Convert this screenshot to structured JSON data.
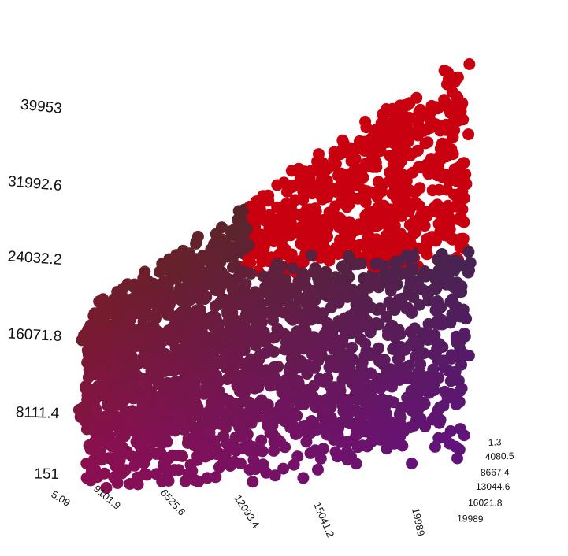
{
  "chart_data": {
    "type": "scatter",
    "dimensions": 3,
    "title": "",
    "xlabel": "",
    "ylabel": "",
    "zlabel": "",
    "grid": false,
    "legend": "none",
    "x_axis": {
      "ticks": [
        "5.09",
        "9101.9",
        "6525.6",
        "12093.4",
        "15041.2",
        "19989"
      ],
      "range": [
        5.09,
        19989
      ]
    },
    "y_axis": {
      "ticks": [
        "1.3",
        "4080.5",
        "8667.4",
        "13044.6",
        "16021.8",
        "19989"
      ],
      "range": [
        1.3,
        19989
      ]
    },
    "z_axis": {
      "ticks": [
        "151",
        "8111.4",
        "16071.8",
        "24032.2",
        "31992.6",
        "39953"
      ],
      "range": [
        151,
        39953
      ]
    },
    "color_rule": "points with z above 20000 are drawn red; others are colored by position",
    "highlight_color": "#c8000f",
    "low_color_x": "#8b0e1a",
    "high_color_x": "#1a1a8c",
    "low_color_z": "#8e0f8c",
    "high_color_z": "#4a3a1a",
    "point_count": 2600
  }
}
